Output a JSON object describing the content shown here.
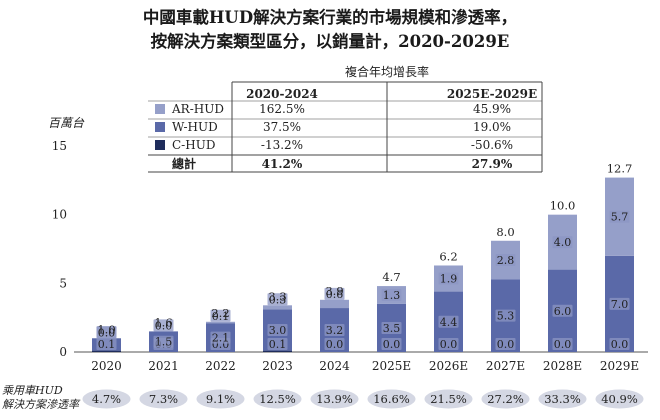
{
  "title_line1": "中國車載HUD解決方案行業的市場規模和滲透率，",
  "title_line2": "按解決方案類型區分，以銷量計，2020-2029E",
  "chart_data": {
    "type": "bar",
    "stacked": true,
    "ylabel": "百萬台",
    "ylim": [
      0,
      15
    ],
    "yticks": [
      0,
      5,
      10,
      15
    ],
    "categories": [
      "2020",
      "2021",
      "2022",
      "2023",
      "2024",
      "2025E",
      "2026E",
      "2027E",
      "2028E",
      "2029E"
    ],
    "series": [
      {
        "name": "C-HUD",
        "color": "#1f2d5c",
        "values": [
          0.1,
          0.0,
          0.0,
          0.1,
          0.0,
          0.0,
          0.0,
          0.0,
          0.0,
          0.0
        ]
      },
      {
        "name": "W-HUD",
        "color": "#5a69a8",
        "values": [
          0.9,
          1.5,
          2.1,
          3.0,
          3.2,
          3.5,
          4.4,
          5.3,
          6.0,
          7.0
        ]
      },
      {
        "name": "AR-HUD",
        "color": "#959fc9",
        "values": [
          0.0,
          0.0,
          0.1,
          0.3,
          0.6,
          1.3,
          1.9,
          2.8,
          4.0,
          5.7
        ]
      }
    ],
    "totals": [
      "1.0",
      "1.6",
      "2.2",
      "3.3",
      "3.9",
      "4.7",
      "6.2",
      "8.0",
      "10.0",
      "12.7"
    ],
    "penetration_label": "乘用車HUD解決方案滲透率",
    "penetration": [
      "4.7%",
      "7.3%",
      "9.1%",
      "12.5%",
      "13.9%",
      "16.6%",
      "21.5%",
      "27.2%",
      "33.3%",
      "40.9%"
    ],
    "cagr_table": {
      "header": "複合年均增長率",
      "columns": [
        "2020-2024",
        "2025E-2029E"
      ],
      "rows": [
        {
          "name": "AR-HUD",
          "values": [
            "162.5%",
            "45.9%"
          ]
        },
        {
          "name": "W-HUD",
          "values": [
            "37.5%",
            "19.0%"
          ]
        },
        {
          "name": "C-HUD",
          "values": [
            "-13.2%",
            "-50.6%"
          ]
        }
      ],
      "total_label": "總計",
      "total_values": [
        "41.2%",
        "27.9%"
      ]
    }
  }
}
